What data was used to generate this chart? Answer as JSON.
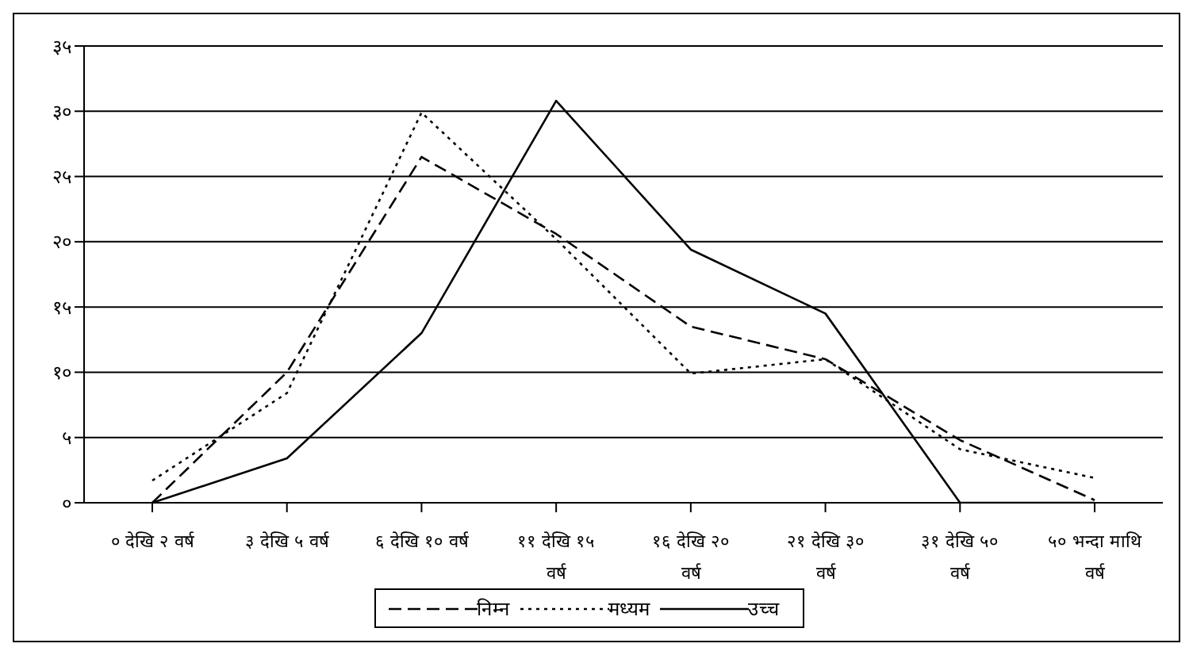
{
  "chart_data": {
    "type": "line",
    "categories": [
      "० देखि २ वर्ष",
      "३ देखि ५ वर्ष",
      "६ देखि १० वर्ष",
      "११ देखि १५ वर्ष",
      "१६ देखि २० वर्ष",
      "२१ देखि ३० वर्ष",
      "३१ देखि ५० वर्ष",
      "५० भन्दा माथि वर्ष"
    ],
    "series": [
      {
        "name": "निम्न",
        "color": "#000000",
        "line_style": "dashed",
        "values": [
          0,
          10,
          26.5,
          20.6,
          13.5,
          11,
          4.8,
          0.2
        ]
      },
      {
        "name": "मध्यम",
        "color": "#000000",
        "line_style": "dotted",
        "values": [
          1.7,
          8.4,
          29.9,
          20.2,
          9.9,
          11,
          4.1,
          1.9
        ]
      },
      {
        "name": "उच्च",
        "color": "#000000",
        "line_style": "solid",
        "values": [
          0,
          3.4,
          13,
          30.8,
          19.4,
          14.5,
          0,
          0
        ]
      }
    ],
    "ylim": [
      0,
      35
    ],
    "yticks": [
      {
        "value": 0,
        "label": "०"
      },
      {
        "value": 5,
        "label": "५"
      },
      {
        "value": 10,
        "label": "१०"
      },
      {
        "value": 15,
        "label": "१५"
      },
      {
        "value": 20,
        "label": "२०"
      },
      {
        "value": 25,
        "label": "२५"
      },
      {
        "value": 30,
        "label": "३०"
      },
      {
        "value": 35,
        "label": "३५"
      }
    ],
    "grid": "y",
    "legend": "bottom",
    "marker": "none"
  }
}
